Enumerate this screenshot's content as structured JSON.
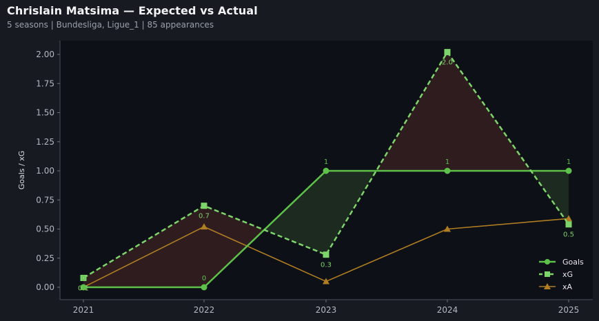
{
  "header": {
    "title": "Chrislain Matsima — Expected vs Actual",
    "seasons": "5 seasons",
    "leagues": "Bundesliga, Ligue_1",
    "appearances": "85 appearances"
  },
  "colors": {
    "goals": "#5ec24a",
    "xg": "#7dd46a",
    "xa": "#b07e22",
    "over_fill": "#1c2a20",
    "under_fill": "#2e1c1f",
    "plot_bg": "#0d1016",
    "page_bg": "#171a21"
  },
  "chart_data": {
    "type": "line",
    "categories": [
      "2021",
      "2022",
      "2023",
      "2024",
      "2025"
    ],
    "ylabel": "Goals / xG",
    "ylim": [
      -0.1,
      2.1
    ],
    "yticks": [
      "0.00",
      "0.25",
      "0.50",
      "0.75",
      "1.00",
      "1.25",
      "1.50",
      "1.75",
      "2.00"
    ],
    "grid": false,
    "legend_position": "bottom-right",
    "series": [
      {
        "name": "Goals",
        "values": [
          0,
          0,
          1,
          1,
          1
        ],
        "labels": [
          "0",
          "0",
          "1",
          "1",
          "1"
        ],
        "marker": "circle",
        "style": "solid"
      },
      {
        "name": "xG",
        "values": [
          0.08,
          0.7,
          0.28,
          2.02,
          0.54
        ],
        "labels": [
          "0.1",
          "0.7",
          "0.3",
          "2.0",
          "0.5"
        ],
        "marker": "square",
        "style": "dashed"
      },
      {
        "name": "xA",
        "values": [
          0.0,
          0.52,
          0.05,
          0.5,
          0.59
        ],
        "marker": "triangle",
        "style": "solid"
      }
    ]
  }
}
